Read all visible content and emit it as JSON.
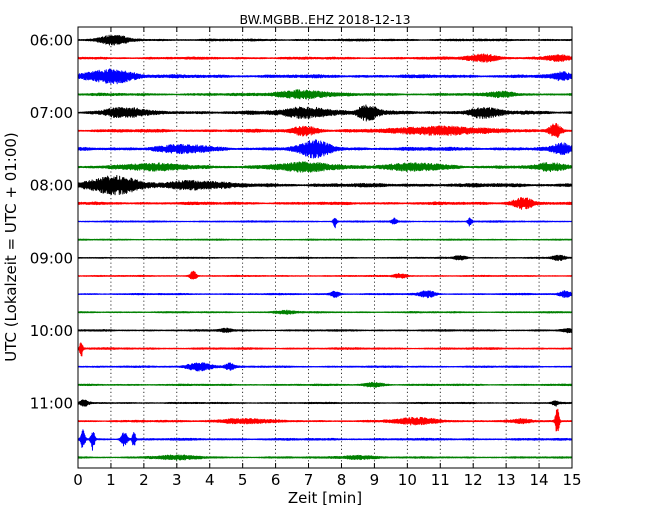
{
  "chart_data": {
    "type": "line",
    "chart_kind": "helicorder",
    "title": "BW.MGBB..EHZ 2018-12-13",
    "xlabel": "Zeit  [min]",
    "ylabel": "UTC (Lokalzeit = UTC + 01:00)",
    "xlim": [
      0,
      15
    ],
    "x_ticks": [
      0,
      1,
      2,
      3,
      4,
      5,
      6,
      7,
      8,
      9,
      10,
      11,
      12,
      13,
      14,
      15
    ],
    "x_tick_labels": [
      "0",
      "1",
      "2",
      "3",
      "4",
      "5",
      "6",
      "7",
      "8",
      "9",
      "10",
      "11",
      "12",
      "13",
      "14",
      "15"
    ],
    "y_tick_labels": [
      "06:00",
      "07:00",
      "08:00",
      "09:00",
      "10:00",
      "11:00"
    ],
    "y_tick_trace_index": [
      0,
      4,
      8,
      12,
      16,
      20
    ],
    "trace_minutes": 15,
    "trace_count": 24,
    "trace_colors": [
      "#000000",
      "#ff0000",
      "#0000ff",
      "#008000"
    ],
    "grid_x": true,
    "grid_style": "dotted",
    "trace_amplitude": [
      0.1,
      0.11,
      0.16,
      0.12,
      0.17,
      0.15,
      0.17,
      0.14,
      0.18,
      0.13,
      0.07,
      0.06,
      0.06,
      0.06,
      0.07,
      0.07,
      0.08,
      0.09,
      0.08,
      0.08,
      0.07,
      0.09,
      0.1,
      0.08
    ],
    "events": [
      [
        {
          "t": 1.1,
          "a": 0.5,
          "w": 0.45
        }
      ],
      [
        {
          "t": 12.3,
          "a": 0.4,
          "w": 0.5
        },
        {
          "t": 14.6,
          "a": 0.3,
          "w": 0.4
        }
      ],
      [
        {
          "t": 1.0,
          "a": 0.8,
          "w": 0.7
        },
        {
          "t": 14.7,
          "a": 0.35,
          "w": 0.3
        }
      ],
      [
        {
          "t": 6.8,
          "a": 0.45,
          "w": 0.8
        },
        {
          "t": 12.9,
          "a": 0.3,
          "w": 0.4
        }
      ],
      [
        {
          "t": 1.4,
          "a": 0.5,
          "w": 0.6
        },
        {
          "t": 7.0,
          "a": 0.55,
          "w": 0.8
        },
        {
          "t": 8.8,
          "a": 0.9,
          "w": 0.3
        },
        {
          "t": 12.3,
          "a": 0.5,
          "w": 0.5
        }
      ],
      [
        {
          "t": 6.9,
          "a": 0.5,
          "w": 0.4
        },
        {
          "t": 11.0,
          "a": 0.45,
          "w": 1.3
        },
        {
          "t": 14.5,
          "a": 0.75,
          "w": 0.2
        }
      ],
      [
        {
          "t": 3.2,
          "a": 0.35,
          "w": 0.8
        },
        {
          "t": 7.2,
          "a": 0.85,
          "w": 0.5
        },
        {
          "t": 14.7,
          "a": 0.5,
          "w": 0.3
        }
      ],
      [
        {
          "t": 2.3,
          "a": 0.3,
          "w": 1.2
        },
        {
          "t": 7.0,
          "a": 0.45,
          "w": 1.0
        },
        {
          "t": 10.3,
          "a": 0.35,
          "w": 1.0
        },
        {
          "t": 14.4,
          "a": 0.4,
          "w": 0.5
        }
      ],
      [
        {
          "t": 1.1,
          "a": 0.9,
          "w": 0.8
        },
        {
          "t": 3.5,
          "a": 0.45,
          "w": 0.9
        }
      ],
      [
        {
          "t": 13.5,
          "a": 0.6,
          "w": 0.35
        }
      ],
      [
        {
          "t": 7.8,
          "a": 0.7,
          "w": 0.05
        },
        {
          "t": 9.6,
          "a": 0.35,
          "w": 0.08
        },
        {
          "t": 11.9,
          "a": 0.5,
          "w": 0.06
        }
      ],
      [],
      [
        {
          "t": 11.6,
          "a": 0.25,
          "w": 0.2
        },
        {
          "t": 14.6,
          "a": 0.3,
          "w": 0.2
        }
      ],
      [
        {
          "t": 3.5,
          "a": 0.55,
          "w": 0.1
        },
        {
          "t": 9.8,
          "a": 0.25,
          "w": 0.2
        }
      ],
      [
        {
          "t": 7.8,
          "a": 0.35,
          "w": 0.15
        },
        {
          "t": 10.6,
          "a": 0.35,
          "w": 0.25
        },
        {
          "t": 14.8,
          "a": 0.35,
          "w": 0.2
        }
      ],
      [
        {
          "t": 6.3,
          "a": 0.2,
          "w": 0.3
        }
      ],
      [
        {
          "t": 4.5,
          "a": 0.2,
          "w": 0.2
        },
        {
          "t": 14.9,
          "a": 0.2,
          "w": 0.2
        }
      ],
      [
        {
          "t": 0.1,
          "a": 0.9,
          "w": 0.05
        }
      ],
      [
        {
          "t": 3.7,
          "a": 0.45,
          "w": 0.4
        },
        {
          "t": 4.6,
          "a": 0.35,
          "w": 0.15
        }
      ],
      [
        {
          "t": 9.0,
          "a": 0.25,
          "w": 0.3
        }
      ],
      [
        {
          "t": 0.2,
          "a": 0.3,
          "w": 0.15
        },
        {
          "t": 14.5,
          "a": 0.3,
          "w": 0.1
        }
      ],
      [
        {
          "t": 5.0,
          "a": 0.25,
          "w": 0.8
        },
        {
          "t": 10.3,
          "a": 0.35,
          "w": 0.7
        },
        {
          "t": 13.5,
          "a": 0.2,
          "w": 0.3
        },
        {
          "t": 14.55,
          "a": 1.7,
          "w": 0.06
        }
      ],
      [
        {
          "t": 0.15,
          "a": 1.1,
          "w": 0.06
        },
        {
          "t": 0.45,
          "a": 1.2,
          "w": 0.06
        },
        {
          "t": 1.4,
          "a": 0.8,
          "w": 0.1
        },
        {
          "t": 1.7,
          "a": 1.0,
          "w": 0.05
        }
      ],
      [
        {
          "t": 3.0,
          "a": 0.2,
          "w": 0.8
        },
        {
          "t": 8.5,
          "a": 0.2,
          "w": 0.6
        }
      ]
    ]
  }
}
